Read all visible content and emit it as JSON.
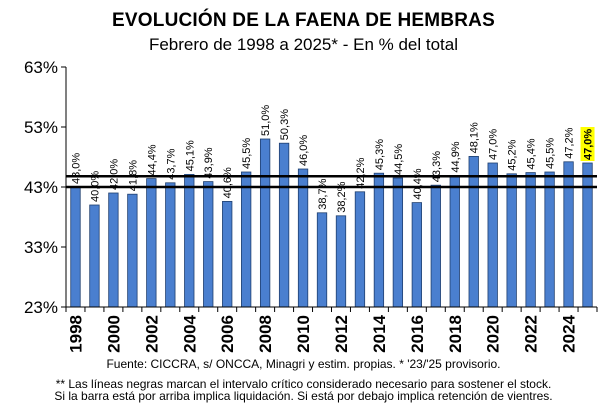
{
  "chart_data": {
    "type": "bar",
    "title": "EVOLUCIÓN DE LA FAENA DE HEMBRAS",
    "subtitle": "Febrero de 1998 a 2025* - En % del total",
    "xlabel": "",
    "ylabel": "",
    "ylim": [
      23,
      63
    ],
    "yticks": [
      23,
      33,
      43,
      53,
      63
    ],
    "ytick_labels": [
      "23%",
      "33%",
      "43%",
      "53%",
      "63%"
    ],
    "categories": [
      "1998",
      "1999",
      "2000",
      "2001",
      "2002",
      "2003",
      "2004",
      "2005",
      "2006",
      "2007",
      "2008",
      "2009",
      "2010",
      "2011",
      "2012",
      "2013",
      "2014",
      "2015",
      "2016",
      "2017",
      "2018",
      "2019",
      "2020",
      "2021",
      "2022",
      "2023",
      "2024",
      "2025"
    ],
    "xtick_labels": [
      "1998",
      "2000",
      "2002",
      "2004",
      "2006",
      "2008",
      "2010",
      "2012",
      "2014",
      "2016",
      "2018",
      "2020",
      "2022",
      "2024"
    ],
    "values": [
      43.0,
      40.0,
      42.0,
      41.8,
      44.4,
      43.7,
      45.1,
      43.9,
      40.6,
      45.5,
      51.0,
      50.3,
      46.0,
      38.7,
      38.2,
      42.2,
      45.3,
      44.5,
      40.4,
      43.3,
      44.9,
      48.1,
      47.0,
      45.2,
      45.4,
      45.5,
      47.2,
      47.0
    ],
    "data_labels": [
      "43,0%",
      "40,0%",
      "42,0%",
      "41,8%",
      "44,4%",
      "43,7%",
      "45,1%",
      "43,9%",
      "40,6%",
      "45,5%",
      "51,0%",
      "50,3%",
      "46,0%",
      "38,7%",
      "38,2%",
      "42,2%",
      "45,3%",
      "44,5%",
      "40,4%",
      "43,3%",
      "44,9%",
      "48,1%",
      "47,0%",
      "45,2%",
      "45,4%",
      "45,5%",
      "47,2%",
      "47,0%"
    ],
    "highlighted_index": 27,
    "reference_lines": [
      44.8,
      43.0
    ],
    "grid": false,
    "legend": "none",
    "colors": {
      "bar": "#4a7fcf",
      "bar_edge": "#1f3f6f",
      "reference_line": "#000000",
      "highlight": "#ffff00"
    }
  },
  "footer": {
    "source": "Fuente: CICCRA, s/ ONCCA, Minagri y estim. propias. * '23/'25  provisorio.",
    "note_line1": "** Las líneas negras marcan el intervalo crítico considerado necesario para sostener el stock.",
    "note_line2": "Si la barra está por arriba implica liquidación. Si está por debajo implica retención de vientres."
  }
}
